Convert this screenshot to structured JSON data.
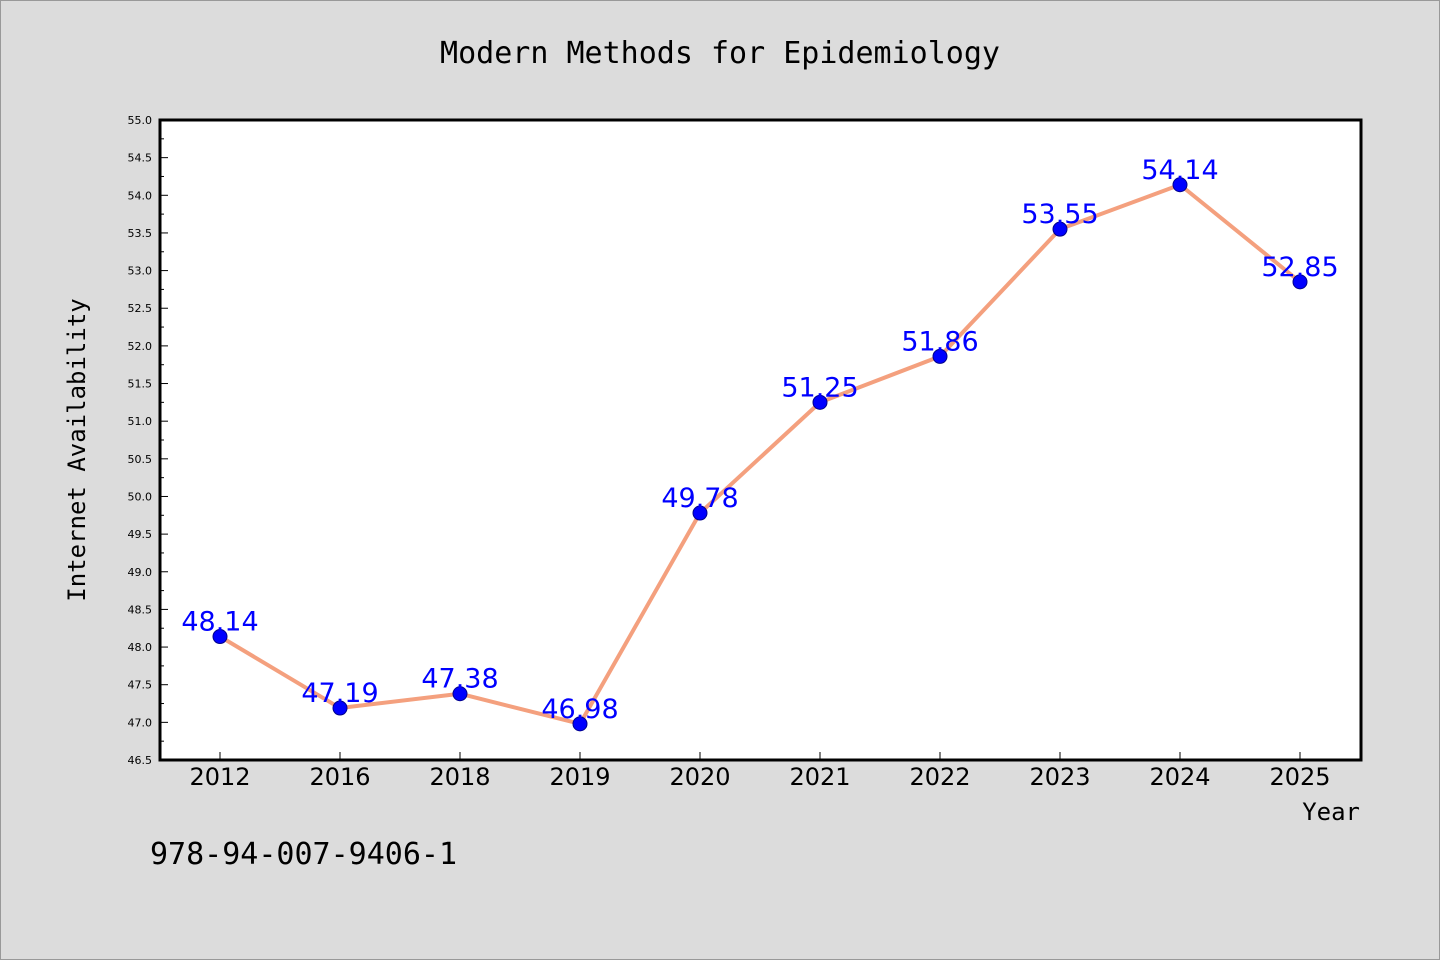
{
  "chart_data": {
    "type": "line",
    "title": "Modern Methods for Epidemiology",
    "xlabel": "Year",
    "ylabel": "Internet Availability",
    "categories": [
      "2012",
      "2016",
      "2018",
      "2019",
      "2020",
      "2021",
      "2022",
      "2023",
      "2024",
      "2025"
    ],
    "series": [
      {
        "values": [
          48.14,
          47.19,
          47.38,
          46.98,
          49.78,
          51.25,
          51.86,
          53.55,
          54.14,
          52.85
        ],
        "labels": [
          "48.14",
          "47.19",
          "47.38",
          "46.98",
          "49.78",
          "51.25",
          "51.86",
          "53.55",
          "54.14",
          "52.85"
        ]
      }
    ],
    "ylim": [
      46.5,
      55.0
    ],
    "yticks": [
      "46.5",
      "47.0",
      "47.5",
      "48.0",
      "48.5",
      "49.0",
      "49.5",
      "50.0",
      "50.5",
      "51.0",
      "51.5",
      "52.0",
      "52.5",
      "53.0",
      "53.5",
      "54.0",
      "54.5",
      "55.0"
    ],
    "grid": false,
    "legend": "none",
    "colors": {
      "line": "#f4a07e",
      "marker": "#0000ff",
      "label": "#0000ff",
      "background": "#dcdcdc",
      "plot": "#ffffff"
    }
  },
  "footer": {
    "isbn": "978-94-007-9406-1"
  }
}
